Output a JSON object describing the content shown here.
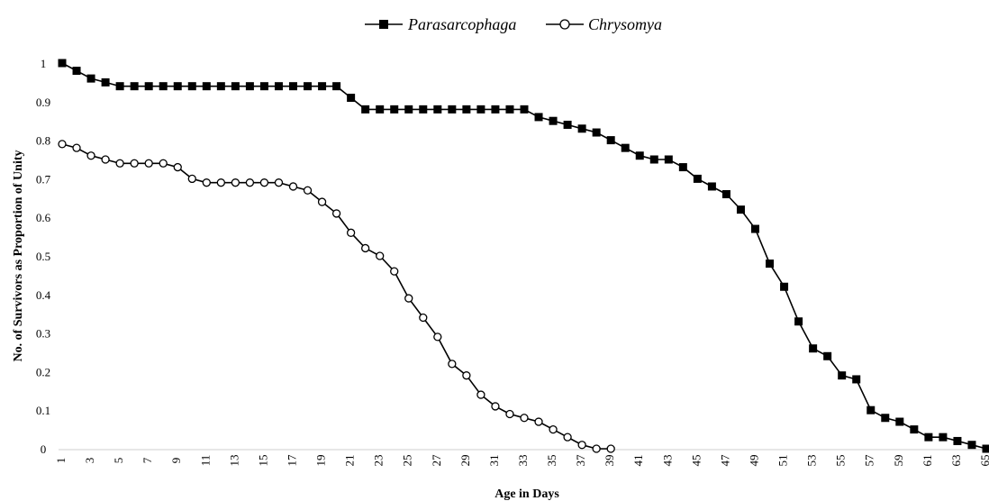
{
  "chart_data": {
    "type": "line",
    "xlabel": "Age in Days",
    "ylabel": "No. of Survivors as Proportion of Unity",
    "ylim": [
      0,
      1
    ],
    "y_ticks": [
      "0",
      "0.1",
      "0.2",
      "0.3",
      "0.4",
      "0.5",
      "0.6",
      "0.7",
      "0.8",
      "0.9",
      "1"
    ],
    "x_ticks": [
      "1",
      "3",
      "5",
      "7",
      "9",
      "11",
      "13",
      "15",
      "17",
      "19",
      "21",
      "23",
      "25",
      "27",
      "29",
      "31",
      "33",
      "35",
      "37",
      "39",
      "41",
      "43",
      "45",
      "47",
      "49",
      "51",
      "53",
      "55",
      "57",
      "59",
      "61",
      "63",
      "65"
    ],
    "xlim": [
      1,
      65
    ],
    "legend_position": "top-center",
    "grid": false,
    "series": [
      {
        "name": "Parasarcophaga",
        "marker": "square-filled",
        "color": "#000000",
        "x": [
          1,
          2,
          3,
          4,
          5,
          6,
          7,
          8,
          9,
          10,
          11,
          12,
          13,
          14,
          15,
          16,
          17,
          18,
          19,
          20,
          21,
          22,
          23,
          24,
          25,
          26,
          27,
          28,
          29,
          30,
          31,
          32,
          33,
          34,
          35,
          36,
          37,
          38,
          39,
          40,
          41,
          42,
          43,
          44,
          45,
          46,
          47,
          48,
          49,
          50,
          51,
          52,
          53,
          54,
          55,
          56,
          57,
          58,
          59,
          60,
          61,
          62,
          63,
          64,
          65
        ],
        "values": [
          1.0,
          0.98,
          0.96,
          0.95,
          0.94,
          0.94,
          0.94,
          0.94,
          0.94,
          0.94,
          0.94,
          0.94,
          0.94,
          0.94,
          0.94,
          0.94,
          0.94,
          0.94,
          0.94,
          0.94,
          0.91,
          0.88,
          0.88,
          0.88,
          0.88,
          0.88,
          0.88,
          0.88,
          0.88,
          0.88,
          0.88,
          0.88,
          0.88,
          0.86,
          0.85,
          0.84,
          0.83,
          0.82,
          0.8,
          0.78,
          0.76,
          0.75,
          0.75,
          0.73,
          0.7,
          0.68,
          0.66,
          0.62,
          0.57,
          0.48,
          0.42,
          0.33,
          0.26,
          0.24,
          0.19,
          0.18,
          0.1,
          0.08,
          0.07,
          0.05,
          0.03,
          0.03,
          0.02,
          0.01,
          0.0
        ]
      },
      {
        "name": "Chrysomya",
        "marker": "circle-open",
        "color": "#000000",
        "x": [
          1,
          2,
          3,
          4,
          5,
          6,
          7,
          8,
          9,
          10,
          11,
          12,
          13,
          14,
          15,
          16,
          17,
          18,
          19,
          20,
          21,
          22,
          23,
          24,
          25,
          26,
          27,
          28,
          29,
          30,
          31,
          32,
          33,
          34,
          35,
          36,
          37,
          38,
          39
        ],
        "values": [
          0.79,
          0.78,
          0.76,
          0.75,
          0.74,
          0.74,
          0.74,
          0.74,
          0.73,
          0.7,
          0.69,
          0.69,
          0.69,
          0.69,
          0.69,
          0.69,
          0.68,
          0.67,
          0.64,
          0.61,
          0.56,
          0.52,
          0.5,
          0.46,
          0.39,
          0.34,
          0.29,
          0.22,
          0.19,
          0.14,
          0.11,
          0.09,
          0.08,
          0.07,
          0.05,
          0.03,
          0.01,
          0.0,
          0.0
        ]
      }
    ]
  }
}
